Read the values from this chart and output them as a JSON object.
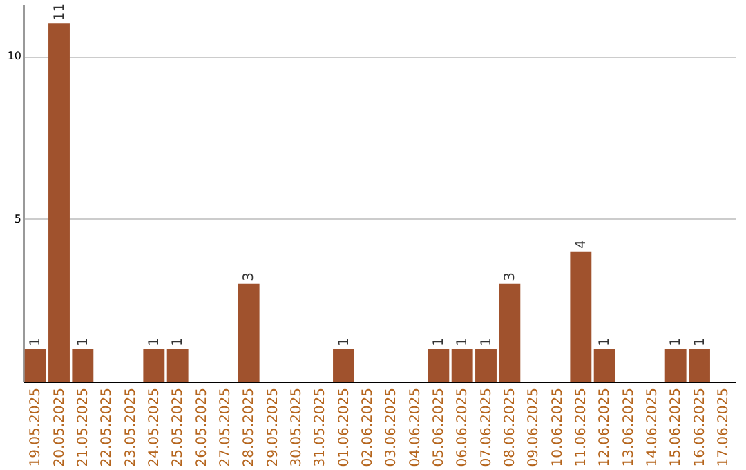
{
  "chart_data": {
    "type": "bar",
    "categories": [
      "19.05.2025",
      "20.05.2025",
      "21.05.2025",
      "22.05.2025",
      "23.05.2025",
      "24.05.2025",
      "25.05.2025",
      "26.05.2025",
      "27.05.2025",
      "28.05.2025",
      "29.05.2025",
      "30.05.2025",
      "31.05.2025",
      "01.06.2025",
      "02.06.2025",
      "03.06.2025",
      "04.06.2025",
      "05.06.2025",
      "06.06.2025",
      "07.06.2025",
      "08.06.2025",
      "09.06.2025",
      "10.06.2025",
      "11.06.2025",
      "12.06.2025",
      "13.06.2025",
      "14.06.2025",
      "15.06.2025",
      "16.06.2025",
      "17.06.2025"
    ],
    "values": [
      1,
      11,
      1,
      0,
      0,
      1,
      1,
      0,
      0,
      3,
      0,
      0,
      0,
      1,
      0,
      0,
      0,
      1,
      1,
      1,
      3,
      0,
      0,
      4,
      1,
      0,
      0,
      1,
      1,
      0
    ],
    "value_labels": [
      "1",
      "11",
      "1",
      null,
      null,
      "1",
      "1",
      null,
      null,
      "3",
      null,
      null,
      null,
      "1",
      null,
      null,
      null,
      "1",
      "1",
      "1",
      "3",
      null,
      null,
      "4",
      "1",
      null,
      null,
      "1",
      "1",
      null
    ],
    "color": "#a0522d",
    "ylim": [
      0,
      11.6
    ],
    "yticks": [
      5,
      10
    ],
    "grid": "y"
  }
}
